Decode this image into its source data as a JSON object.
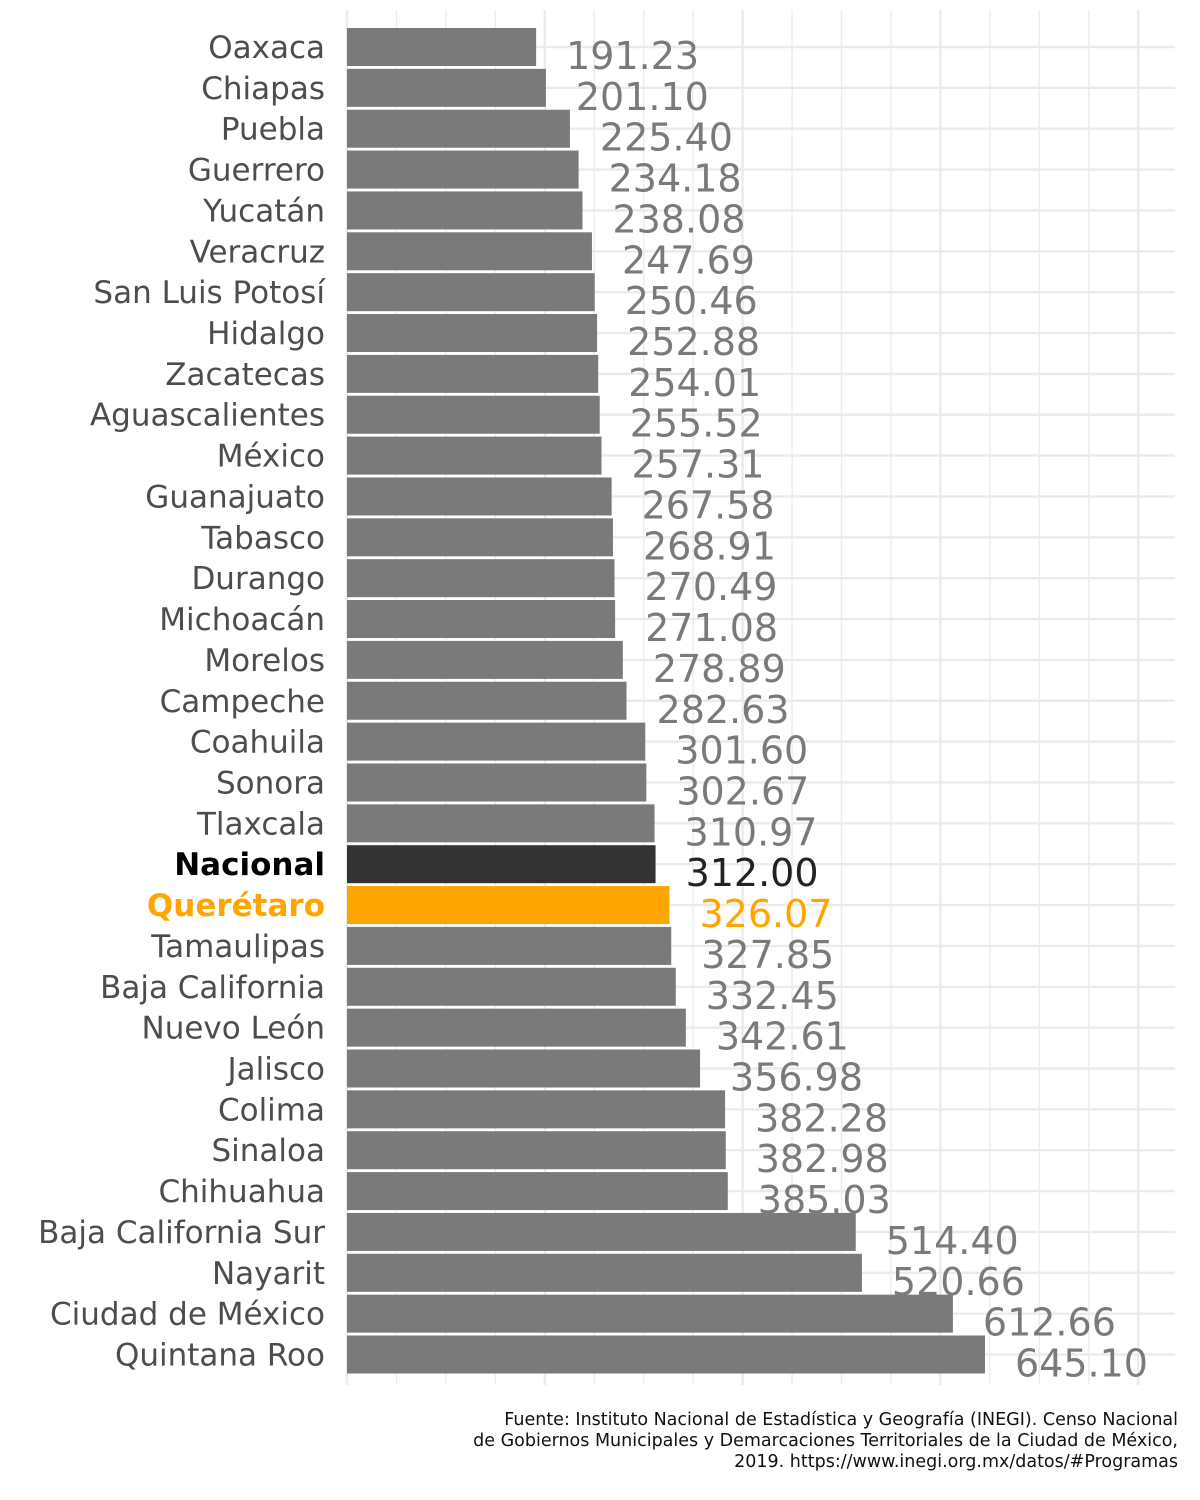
{
  "chart_data": {
    "type": "bar",
    "orientation": "horizontal",
    "categories": [
      "Oaxaca",
      "Chiapas",
      "Puebla",
      "Guerrero",
      "Yucatán",
      "Veracruz",
      "San Luis Potosí",
      "Hidalgo",
      "Zacatecas",
      "Aguascalientes",
      "México",
      "Guanajuato",
      "Tabasco",
      "Durango",
      "Michoacán",
      "Morelos",
      "Campeche",
      "Coahuila",
      "Sonora",
      "Tlaxcala",
      "Nacional",
      "Querétaro",
      "Tamaulipas",
      "Baja California",
      "Nuevo León",
      "Jalisco",
      "Colima",
      "Sinaloa",
      "Chihuahua",
      "Baja California Sur",
      "Nayarit",
      "Ciudad de México",
      "Quintana Roo"
    ],
    "values": [
      191.23,
      201.1,
      225.4,
      234.18,
      238.08,
      247.69,
      250.46,
      252.88,
      254.01,
      255.52,
      257.31,
      267.58,
      268.91,
      270.49,
      271.08,
      278.89,
      282.63,
      301.6,
      302.67,
      310.97,
      312.0,
      326.07,
      327.85,
      332.45,
      342.61,
      356.98,
      382.28,
      382.98,
      385.03,
      514.4,
      520.66,
      612.66,
      645.1
    ],
    "value_labels": [
      "191.23",
      "201.10",
      "225.40",
      "234.18",
      "238.08",
      "247.69",
      "250.46",
      "252.88",
      "254.01",
      "255.52",
      "257.31",
      "267.58",
      "268.91",
      "270.49",
      "271.08",
      "278.89",
      "282.63",
      "301.60",
      "302.67",
      "310.97",
      "312.00",
      "326.07",
      "327.85",
      "332.45",
      "342.61",
      "356.98",
      "382.28",
      "382.98",
      "385.03",
      "514.40",
      "520.66",
      "612.66",
      "645.10"
    ],
    "highlights": {
      "Nacional": {
        "bar_color": "#333333",
        "label_color": "#000000",
        "bold": true
      },
      "Querétaro": {
        "bar_color": "#FFA500",
        "label_color": "#FFA500",
        "bold": true
      }
    },
    "default_bar_color": "#7a7a7a",
    "grid": true,
    "xlim": [
      0,
      800
    ]
  },
  "caption": {
    "lines": [
      "Fuente: Instituto Nacional de Estadística y Geografía (INEGI). Censo Nacional",
      "de Gobiernos Municipales y Demarcaciones Territoriales de la Ciudad de México,",
      "2019. https://www.inegi.org.mx/datos/#Programas"
    ]
  }
}
